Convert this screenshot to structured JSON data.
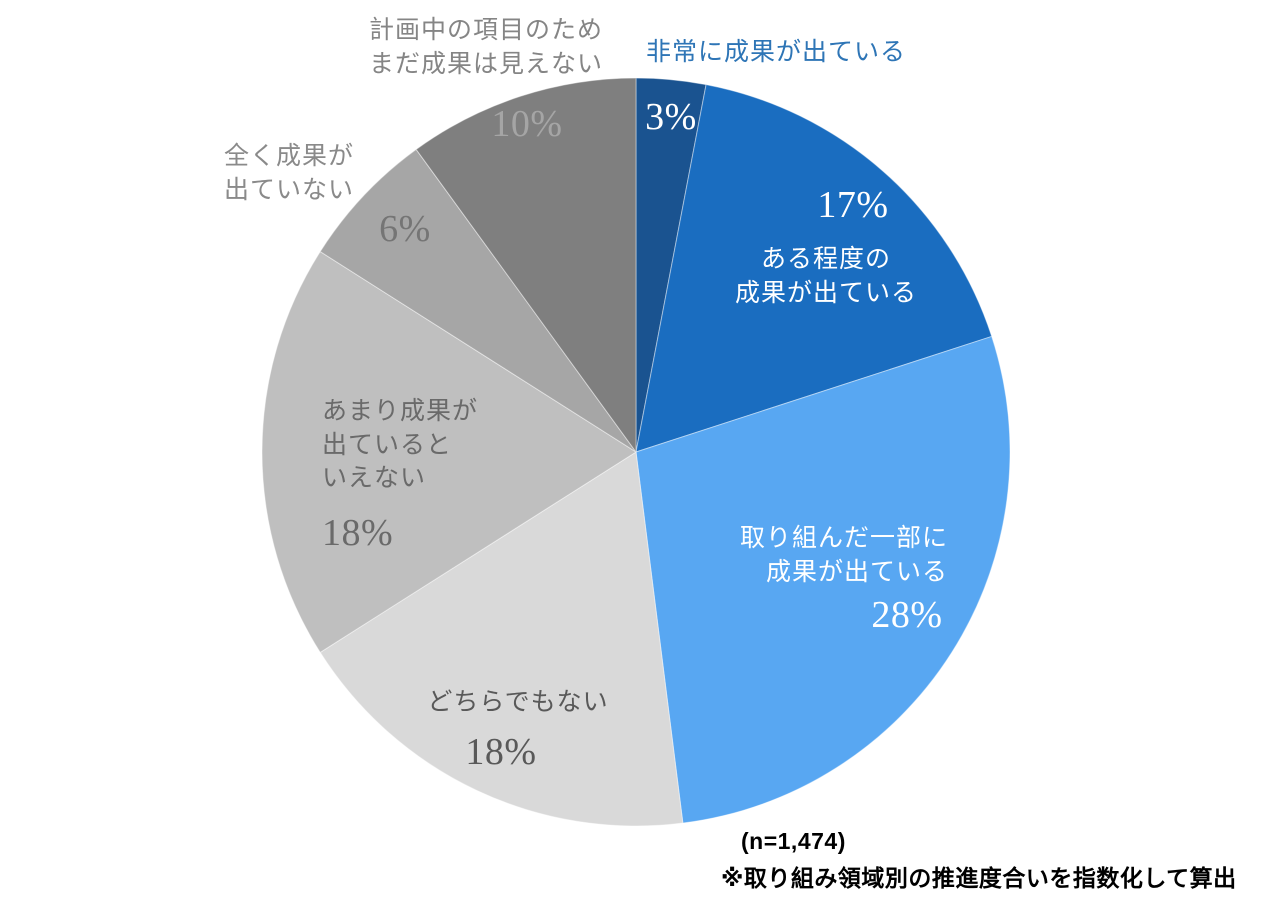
{
  "chart_data": {
    "type": "pie",
    "start_angle_deg": 0,
    "direction": "clockwise",
    "legend_position": "none",
    "n_label": "(n=1,474)",
    "footnote": "※取り組み領域別の推進度合いを指数化して算出",
    "segments": [
      {
        "id": "very-effective",
        "label": "非常に成果が出ている",
        "value": 3,
        "pct_label": "3%",
        "color": "#1A5390",
        "label_color": "#2E75B6"
      },
      {
        "id": "somewhat-effective",
        "label": "ある程度の成果が出ている",
        "label_lines": [
          "ある程度の",
          "成果が出ている"
        ],
        "value": 17,
        "pct_label": "17%",
        "color": "#1A6DC0",
        "label_color": "#FFFFFF"
      },
      {
        "id": "partially-effective",
        "label": "取り組んだ一部に成果が出ている",
        "label_lines": [
          "取り組んだ一部に",
          "成果が出ている"
        ],
        "value": 28,
        "pct_label": "28%",
        "color": "#58A7F2",
        "label_color": "#FFFFFF"
      },
      {
        "id": "neutral",
        "label": "どちらでもない",
        "value": 18,
        "pct_label": "18%",
        "color": "#D9D9D9",
        "label_color": "#595959"
      },
      {
        "id": "not-really-effective",
        "label": "あまり成果が出ているといえない",
        "label_lines": [
          "あまり成果が",
          "出ていると",
          "いえない"
        ],
        "value": 18,
        "pct_label": "18%",
        "color": "#BFBFBF",
        "label_color": "#6A6A6A"
      },
      {
        "id": "not-effective",
        "label": "全く成果が出ていない",
        "label_lines": [
          "全く成果が",
          "出ていない"
        ],
        "value": 6,
        "pct_label": "6%",
        "color": "#A6A6A6",
        "label_color": "#8A8A8A"
      },
      {
        "id": "planned-no-results-yet",
        "label": "計画中の項目のためまだ成果は見えない",
        "label_lines": [
          "計画中の項目のため",
          "まだ成果は見えない"
        ],
        "value": 10,
        "pct_label": "10%",
        "color": "#7F7F7F",
        "label_color": "#858585"
      }
    ]
  }
}
